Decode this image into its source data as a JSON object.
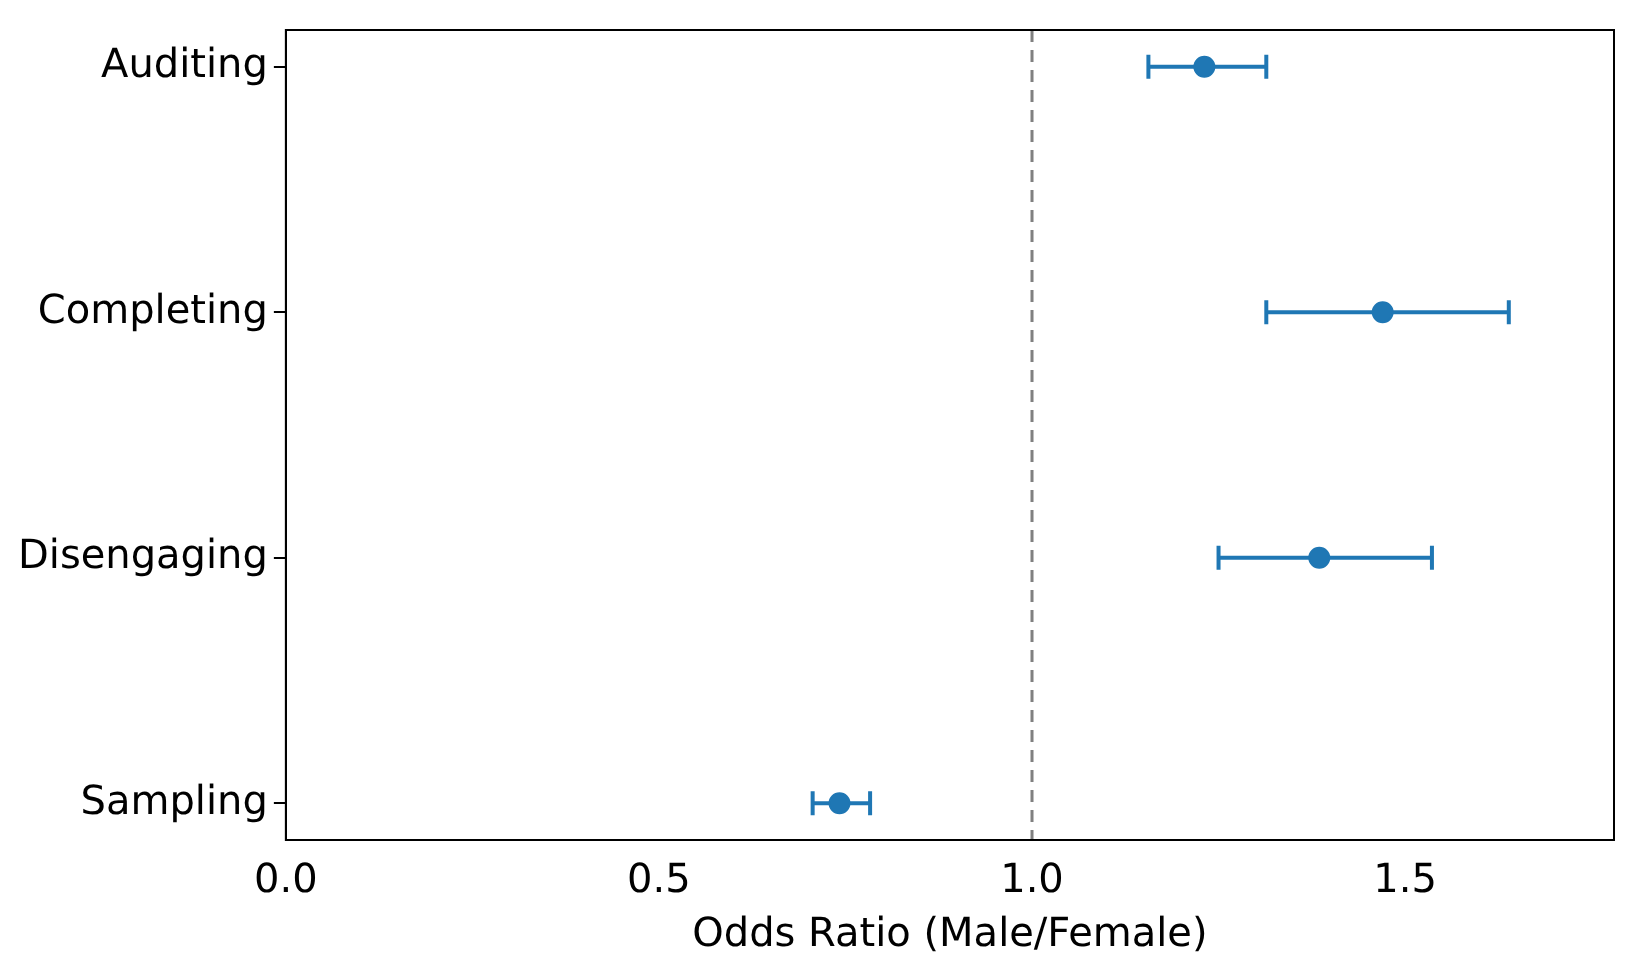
{
  "chart_data": {
    "type": "scatter",
    "orientation": "horizontal",
    "xlabel": "Odds Ratio (Male/Female)",
    "categories": [
      "Auditing",
      "Completing",
      "Disengaging",
      "Sampling"
    ],
    "series": [
      {
        "color": "#1f77b4",
        "values": [
          1.231,
          1.47,
          1.385,
          0.742
        ],
        "errors": [
          [
            1.156,
            1.314
          ],
          [
            1.314,
            1.639
          ],
          [
            1.25,
            1.536
          ],
          [
            0.706,
            0.783
          ]
        ]
      }
    ],
    "xlim": [
      0,
      1.78
    ],
    "xticks": [
      {
        "value": 0,
        "label": "0.0"
      },
      0.5,
      {
        "value": 1,
        "label": "1.0"
      },
      1.5
    ],
    "ref_lines": [
      {
        "axis": "x",
        "value": 1,
        "color": "#808080",
        "line_style": "dashed"
      }
    ],
    "marker": "circle",
    "grid": false,
    "legend": false
  }
}
